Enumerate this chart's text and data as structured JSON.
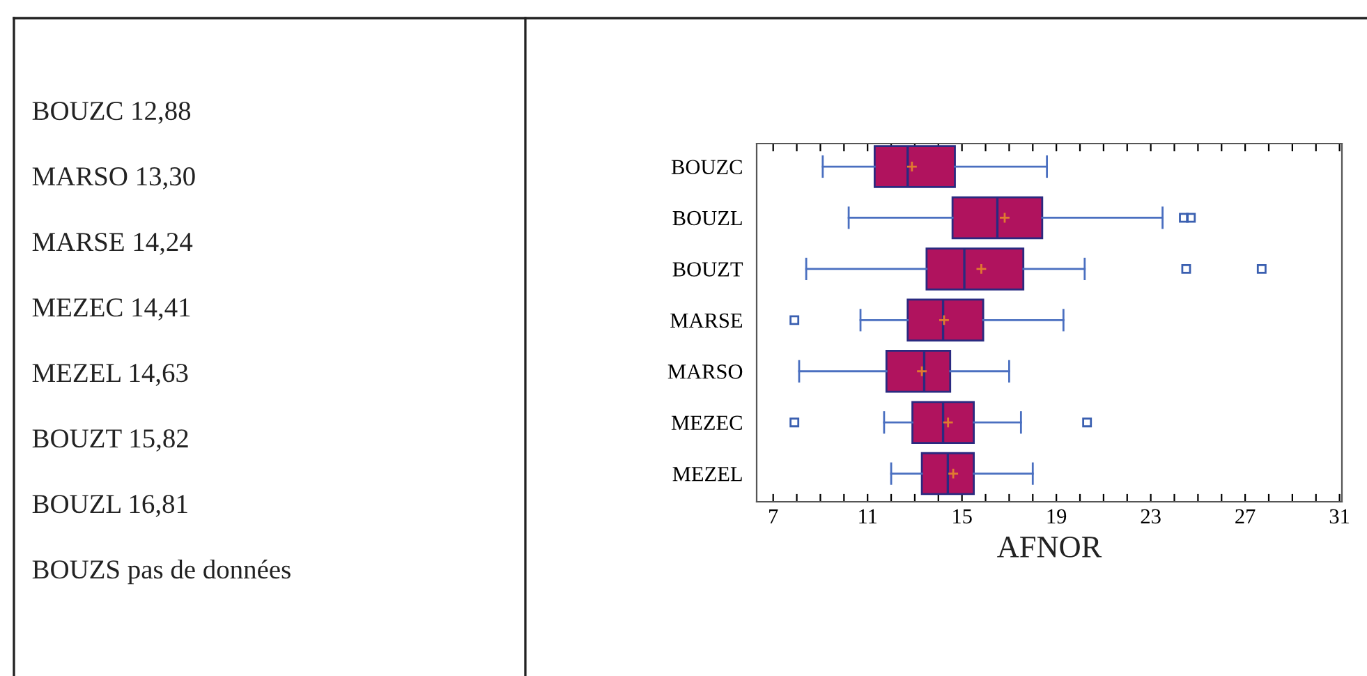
{
  "chart_data": [
    {
      "type": "other",
      "annotations": [
        "BOUZC 12,88",
        "MARSO 13,30",
        "MARSE 14,24",
        "MEZEC 14,41",
        "MEZEL 14,63",
        "BOUZT 15,82",
        "BOUZL 16,81",
        "BOUZS pas de données"
      ]
    },
    {
      "type": "box",
      "orientation": "horizontal",
      "xlabel": "AFNOR",
      "categories": [
        "BOUZC",
        "BOUZL",
        "BOUZT",
        "MARSE",
        "MARSO",
        "MEZEC",
        "MEZEL"
      ],
      "xlim": [
        6.3,
        31.1
      ],
      "xticks": [
        7,
        {
          "value": 8,
          "label": null
        },
        {
          "value": 9,
          "label": null
        },
        {
          "value": 10,
          "label": null
        },
        11,
        {
          "value": 12,
          "label": null
        },
        {
          "value": 13,
          "label": null
        },
        {
          "value": 14,
          "label": null
        },
        15,
        {
          "value": 16,
          "label": null
        },
        {
          "value": 17,
          "label": null
        },
        {
          "value": 18,
          "label": null
        },
        19,
        {
          "value": 20,
          "label": null
        },
        {
          "value": 21,
          "label": null
        },
        {
          "value": 22,
          "label": null
        },
        23,
        {
          "value": 24,
          "label": null
        },
        {
          "value": 25,
          "label": null
        },
        {
          "value": 26,
          "label": null
        },
        27,
        {
          "value": 28,
          "label": null
        },
        {
          "value": 29,
          "label": null
        },
        {
          "value": 30,
          "label": null
        },
        31
      ],
      "series": [
        {
          "color": "#b0135e",
          "boxes": [
            {
              "low": 9.1,
              "q1": 11.3,
              "median": 12.7,
              "q3": 14.7,
              "high": 18.6,
              "mean": 12.88
            },
            {
              "low": 10.2,
              "q1": 14.6,
              "median": 16.5,
              "q3": 18.4,
              "high": 23.5,
              "mean": 16.81,
              "outliers": [
                24.4,
                24.7
              ]
            },
            {
              "low": 8.4,
              "q1": 13.5,
              "median": 15.1,
              "q3": 17.6,
              "high": 20.2,
              "mean": 15.82,
              "outliers": [
                24.5,
                27.7
              ]
            },
            {
              "low": 10.7,
              "q1": 12.7,
              "median": 14.2,
              "q3": 15.9,
              "high": 19.3,
              "mean": 14.24,
              "outliers": [
                7.9
              ]
            },
            {
              "low": 8.1,
              "q1": 11.8,
              "median": 13.4,
              "q3": 14.5,
              "high": 17.0,
              "mean": 13.3
            },
            {
              "low": 11.7,
              "q1": 12.9,
              "median": 14.2,
              "q3": 15.5,
              "high": 17.5,
              "mean": 14.41,
              "outliers": [
                7.9,
                20.3
              ]
            },
            {
              "low": 12.0,
              "q1": 13.3,
              "median": 14.4,
              "q3": 15.5,
              "high": 18.0,
              "mean": 14.63
            }
          ]
        }
      ]
    }
  ]
}
